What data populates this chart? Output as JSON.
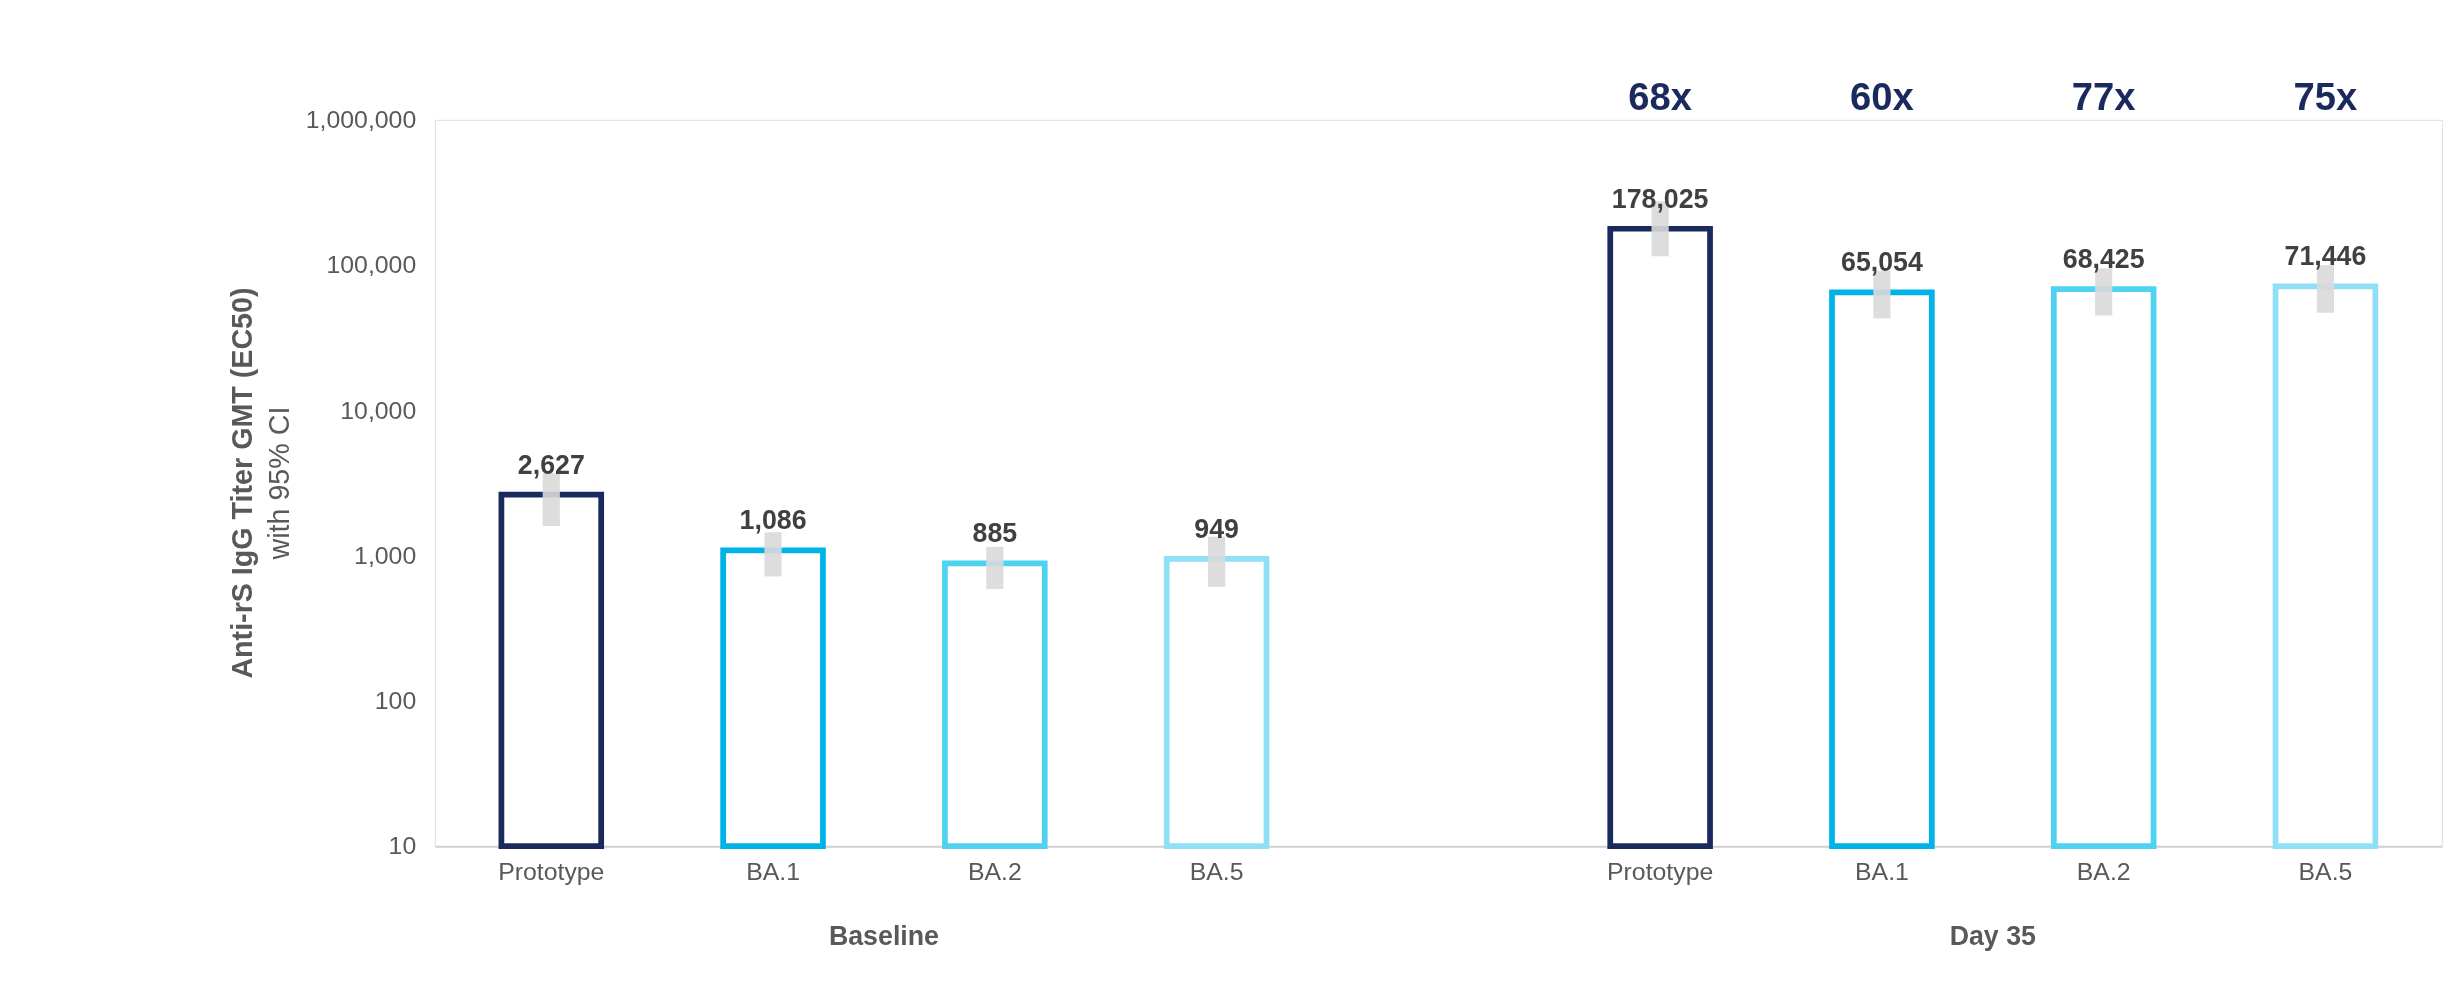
{
  "chart_data": {
    "type": "bar",
    "ylabel": "Anti-rS IgG Titer GMT (EC50)\nwith 95% CI",
    "categories": [
      "Prototype",
      "BA.1",
      "BA.2",
      "BA.5",
      null,
      "Prototype",
      "BA.1",
      "BA.2",
      "BA.5"
    ],
    "values": [
      2627,
      1086,
      885,
      949,
      null,
      178025,
      65054,
      68425,
      71446
    ],
    "colors": [
      "#1b2a5c",
      "#00b3e6",
      "#4dd2f2",
      "#8fe0f7",
      null,
      "#1b2a5c",
      "#00b3e6",
      "#4dd2f2",
      "#8fe0f7"
    ],
    "errors": [
      [
        1600,
        3700
      ],
      [
        720,
        1450
      ],
      [
        590,
        1150
      ],
      [
        610,
        1350
      ],
      null,
      [
        115000,
        275000
      ],
      [
        43000,
        91000
      ],
      [
        45000,
        95000
      ],
      [
        47000,
        100000
      ]
    ],
    "value_labels": [
      "2,627",
      "1,086",
      "885",
      "949",
      null,
      "178,025",
      "65,054",
      "68,425",
      "71,446"
    ],
    "log": true,
    "ylim": [
      10,
      1000000
    ],
    "yticks": [
      10,
      100,
      {
        "value": 1000,
        "label": "1,000"
      },
      {
        "value": 10000,
        "label": "10,000"
      },
      {
        "value": 100000,
        "label": "100,000"
      },
      {
        "value": 1000000,
        "label": "1,000,000"
      }
    ],
    "grid": false,
    "annotations": [
      "Baseline",
      "Day 35",
      "68x",
      "60x",
      "77x",
      "75x"
    ]
  }
}
